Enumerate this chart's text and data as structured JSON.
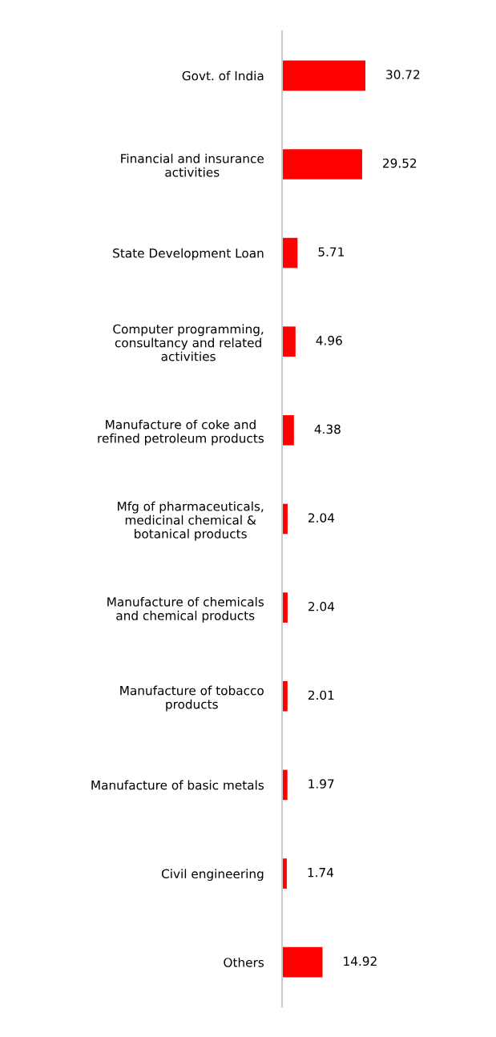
{
  "chart_data": {
    "type": "bar",
    "orientation": "horizontal",
    "categories": [
      "Govt. of India",
      "Financial and insurance\nactivities",
      "State Development Loan",
      "Computer programming,\nconsultancy and related\nactivities",
      "Manufacture of coke and\nrefined petroleum products",
      "Mfg of pharmaceuticals,\nmedicinal chemical &\nbotanical products",
      "Manufacture of chemicals\nand chemical products",
      "Manufacture of tobacco\nproducts",
      "Manufacture of basic metals",
      "Civil engineering",
      "Others"
    ],
    "values": [
      30.72,
      29.52,
      5.71,
      4.96,
      4.38,
      2.04,
      2.04,
      2.01,
      1.97,
      1.74,
      14.92
    ],
    "color": "#ff0000",
    "data_labels": true,
    "tick_labels": "y",
    "grid": false,
    "legend": false
  }
}
